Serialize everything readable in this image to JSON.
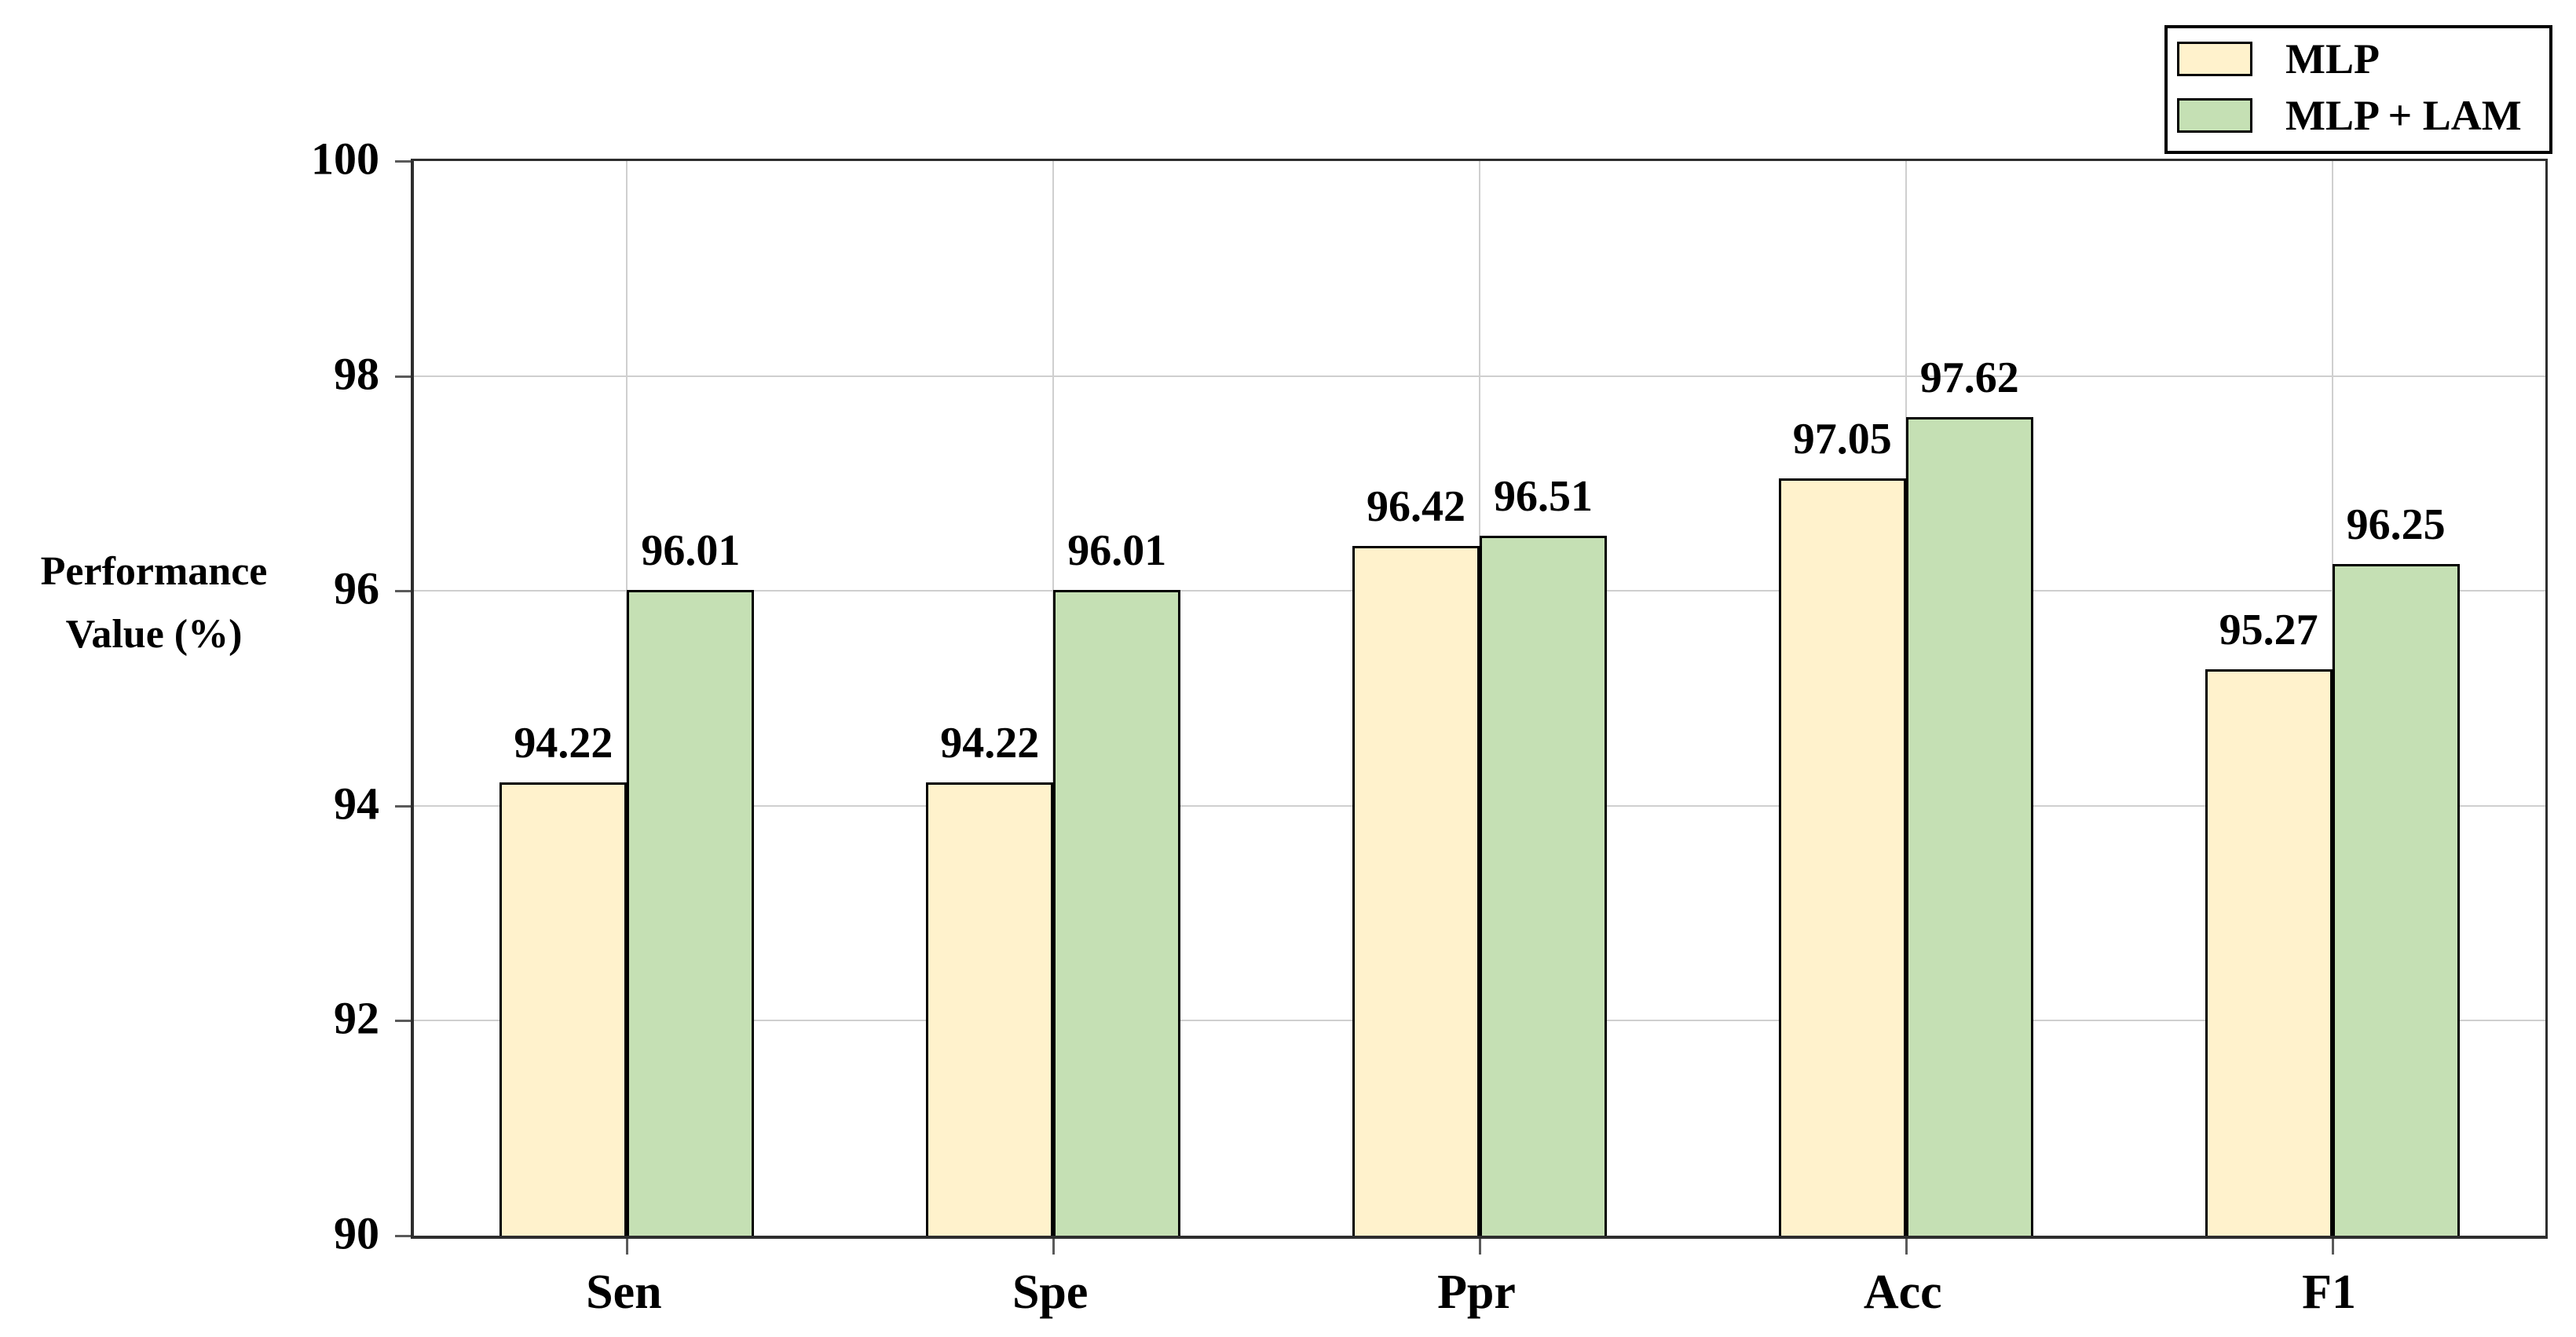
{
  "chart_data": {
    "type": "bar",
    "title": "",
    "categories": [
      "Sen",
      "Spe",
      "Ppr",
      "Acc",
      "F1"
    ],
    "series": [
      {
        "name": "MLP",
        "color": "#FFF2CC",
        "values": [
          94.22,
          94.22,
          96.42,
          97.05,
          95.27
        ]
      },
      {
        "name": "MLP + LAM",
        "color": "#C5E0B4",
        "values": [
          96.01,
          96.01,
          96.51,
          97.62,
          96.25
        ]
      }
    ],
    "value_labels": [
      [
        "94.22",
        "94.22",
        "96.42",
        "97.05",
        "95.27"
      ],
      [
        "96.01",
        "96.01",
        "96.51",
        "97.62",
        "96.25"
      ]
    ],
    "xlabel": "",
    "ylabel": "Performance Value (%)",
    "ylabel_lines": [
      "Performance",
      "Value (%)"
    ],
    "ylim": [
      90,
      100
    ],
    "yticks": [
      "90",
      "92",
      "94",
      "96",
      "98",
      "100"
    ],
    "grid": "horizontal gridlines at y ticks and vertical gridlines at category centers",
    "legend_position": "top-right",
    "bar_outline_color": "#000000",
    "gridline_color": "#cfcfcf",
    "axis_color": "#2e2e2e"
  }
}
